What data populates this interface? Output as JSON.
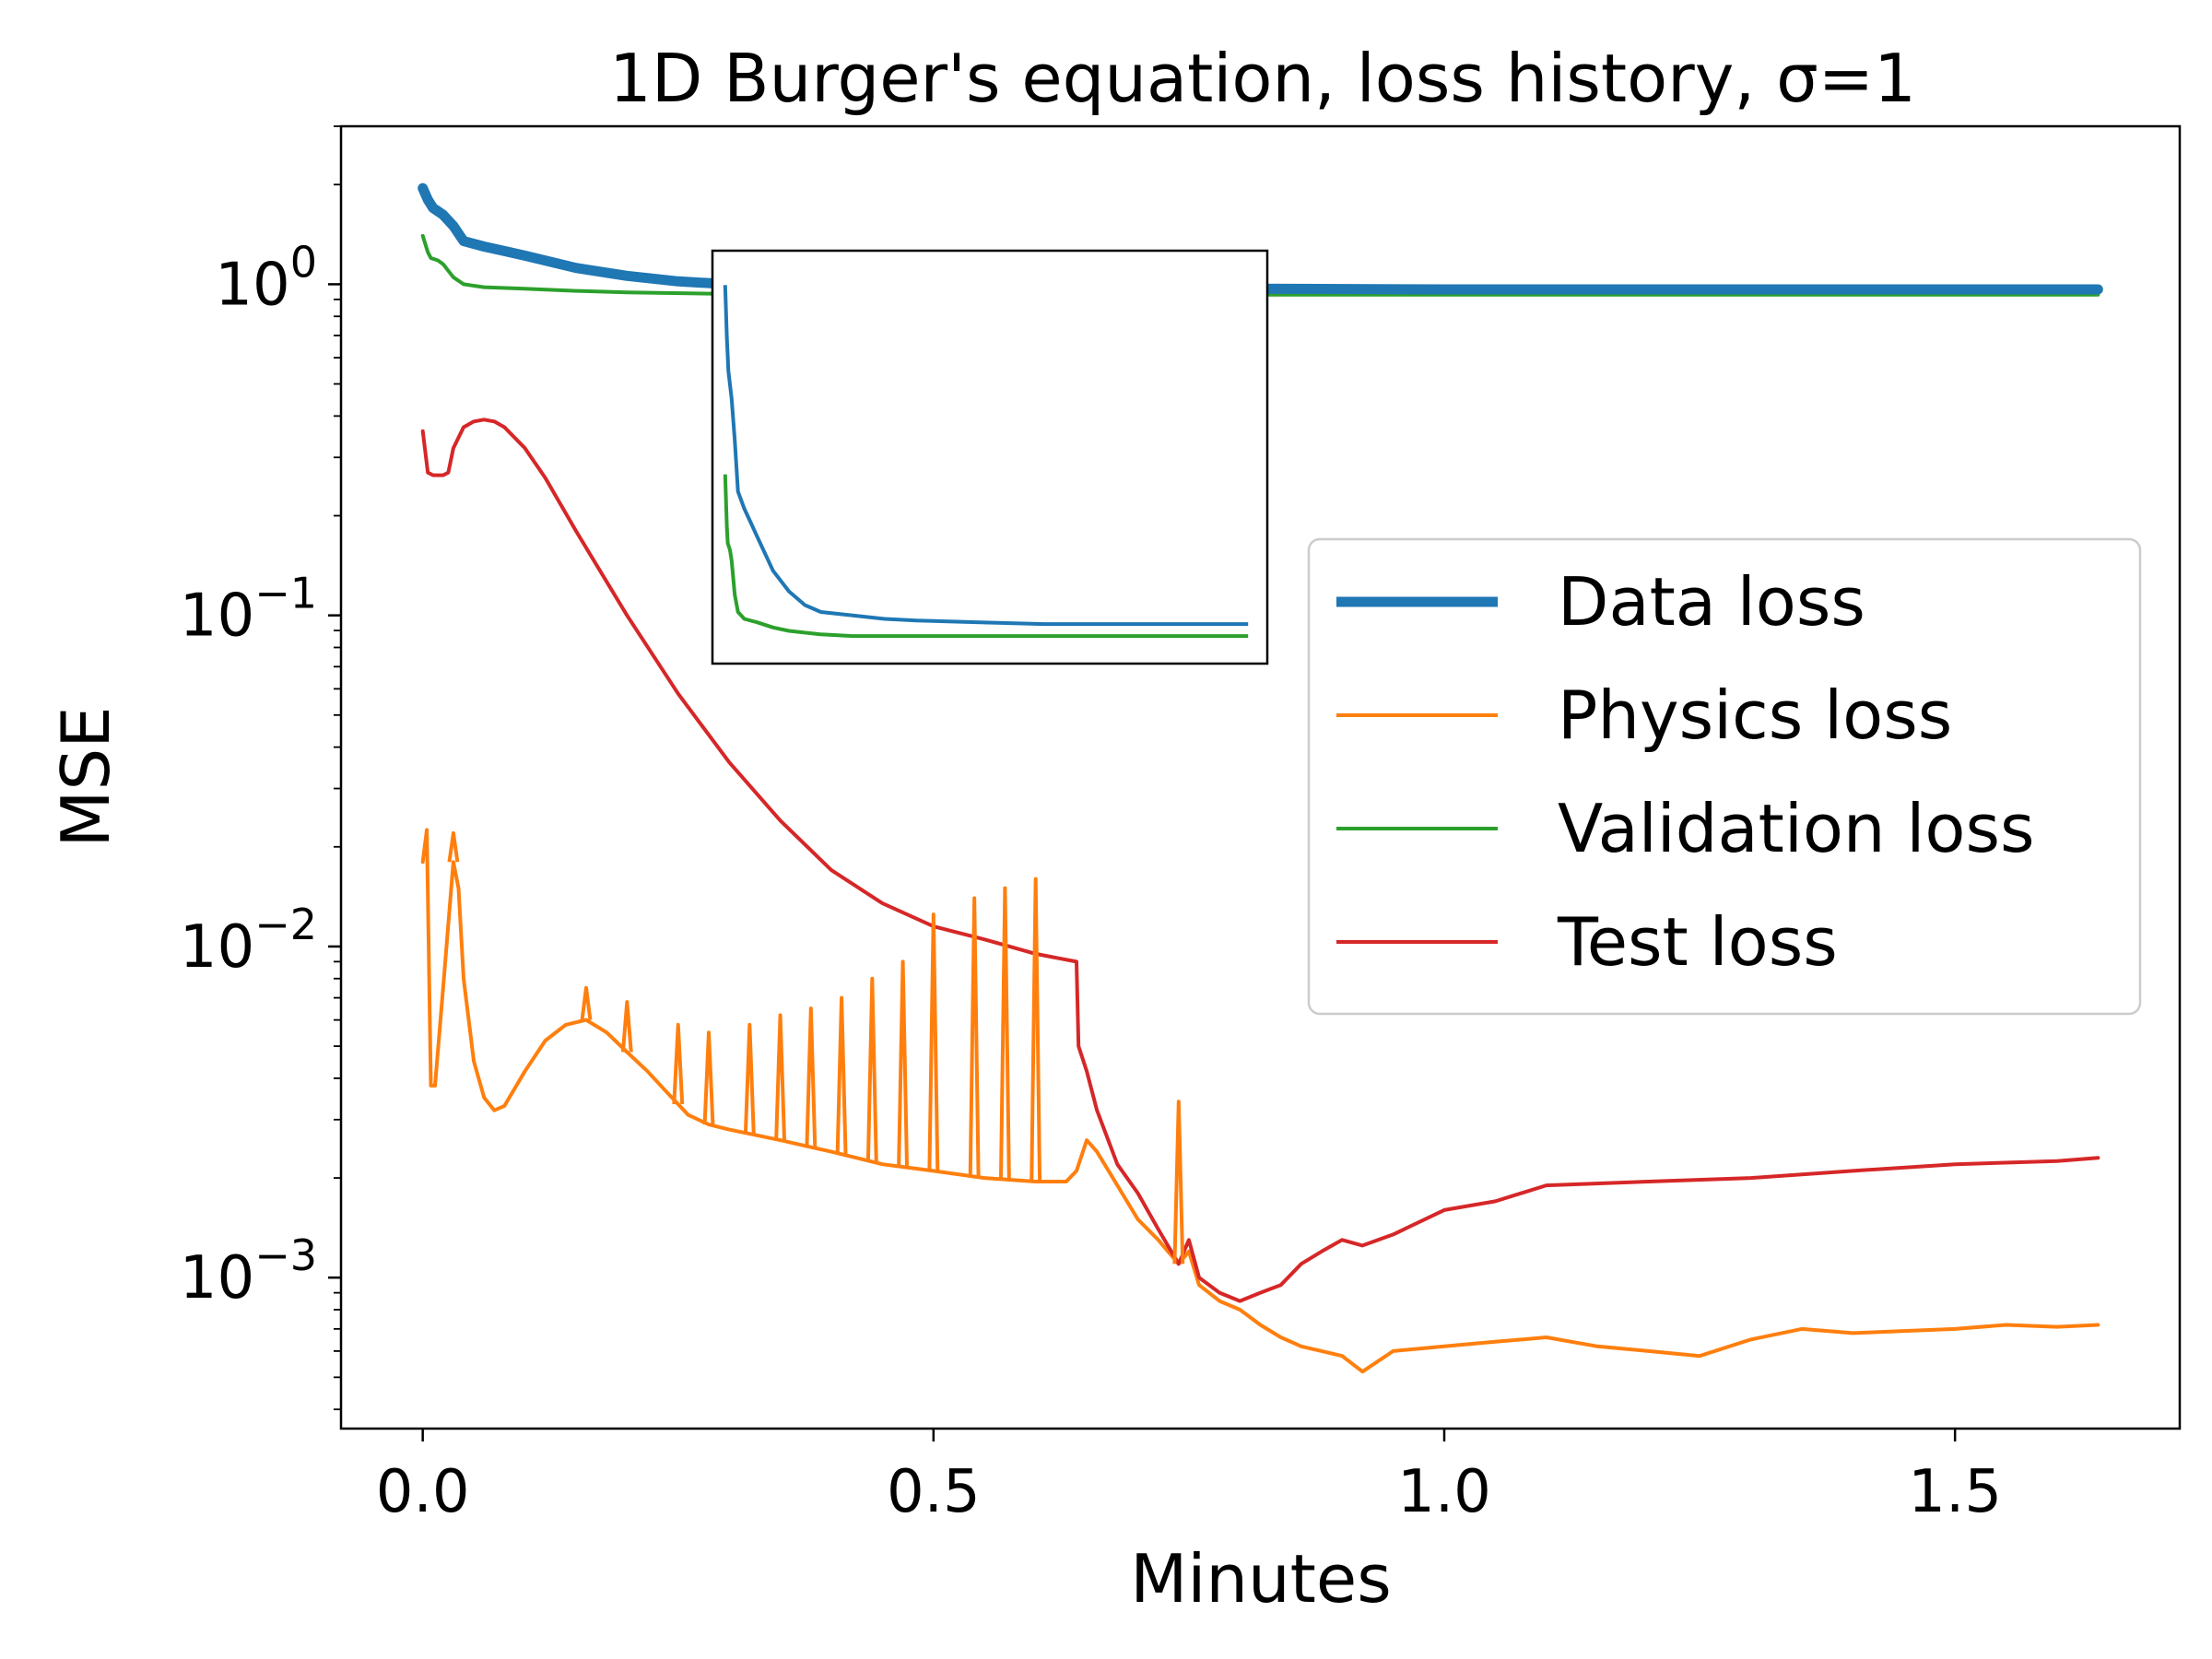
{
  "chart_data": {
    "type": "line",
    "title": "1D Burger's equation, loss history, σ=1",
    "xlabel": "Minutes",
    "ylabel": "MSE",
    "yscale": "log",
    "xlim": [
      -0.08,
      1.72
    ],
    "ylim": [
      0.00035,
      3.0
    ],
    "xticks": [
      0.0,
      0.5,
      1.0,
      1.5
    ],
    "xtick_labels": [
      "0.0",
      "0.5",
      "1.0",
      "1.5"
    ],
    "yticks": [
      {
        "value": 1,
        "base": "10",
        "exp": "0"
      },
      {
        "value": 0.1,
        "base": "10",
        "exp": "−1"
      },
      {
        "value": 0.01,
        "base": "10",
        "exp": "−2"
      },
      {
        "value": 0.001,
        "base": "10",
        "exp": "−3"
      }
    ],
    "legend_position": "center-right",
    "series": [
      {
        "name": "Data loss",
        "color": "#1f77b4",
        "width": "thick",
        "x": [
          0.0,
          0.005,
          0.01,
          0.02,
          0.03,
          0.04,
          0.06,
          0.08,
          0.1,
          0.15,
          0.2,
          0.25,
          0.3,
          0.4,
          0.5,
          0.6,
          0.8,
          1.0,
          1.2,
          1.4,
          1.64
        ],
        "y": [
          1.95,
          1.8,
          1.7,
          1.62,
          1.5,
          1.35,
          1.3,
          1.26,
          1.22,
          1.12,
          1.06,
          1.02,
          1.0,
          0.99,
          0.98,
          0.975,
          0.97,
          0.965,
          0.965,
          0.965,
          0.965
        ]
      },
      {
        "name": "Physics loss",
        "color": "#ff7f0e",
        "width": "normal",
        "x": [
          0.0,
          0.004,
          0.008,
          0.012,
          0.02,
          0.03,
          0.035,
          0.04,
          0.05,
          0.06,
          0.07,
          0.08,
          0.1,
          0.12,
          0.14,
          0.16,
          0.18,
          0.2,
          0.22,
          0.24,
          0.26,
          0.28,
          0.3,
          0.35,
          0.4,
          0.45,
          0.5,
          0.55,
          0.6,
          0.63,
          0.64,
          0.65,
          0.66,
          0.68,
          0.7,
          0.72,
          0.74,
          0.75,
          0.76,
          0.78,
          0.8,
          0.82,
          0.84,
          0.86,
          0.88,
          0.9,
          0.92,
          0.95,
          1.0,
          1.05,
          1.1,
          1.15,
          1.2,
          1.25,
          1.3,
          1.35,
          1.4,
          1.45,
          1.5,
          1.55,
          1.6,
          1.64
        ],
        "y": [
          0.018,
          0.0225,
          0.0038,
          0.0038,
          0.0075,
          0.018,
          0.015,
          0.008,
          0.0045,
          0.0035,
          0.0032,
          0.0033,
          0.0042,
          0.0052,
          0.0058,
          0.006,
          0.0055,
          0.0048,
          0.0042,
          0.0036,
          0.0031,
          0.0029,
          0.0028,
          0.0026,
          0.0024,
          0.0022,
          0.0021,
          0.002,
          0.00195,
          0.00195,
          0.0021,
          0.0026,
          0.0024,
          0.0019,
          0.0015,
          0.0013,
          0.0011,
          0.0012,
          0.00095,
          0.00085,
          0.0008,
          0.00072,
          0.00066,
          0.00062,
          0.0006,
          0.00058,
          0.00052,
          0.0006,
          0.00062,
          0.00064,
          0.00066,
          0.00062,
          0.0006,
          0.00058,
          0.00065,
          0.0007,
          0.00068,
          0.00069,
          0.0007,
          0.00072,
          0.00071,
          0.00072
        ]
      },
      {
        "name": "Validation loss",
        "color": "#2ca02c",
        "width": "normal",
        "x": [
          0.0,
          0.005,
          0.008,
          0.015,
          0.02,
          0.03,
          0.04,
          0.06,
          0.1,
          0.15,
          0.2,
          0.3,
          0.4,
          0.6,
          0.8,
          1.0,
          1.2,
          1.4,
          1.64
        ],
        "y": [
          1.4,
          1.25,
          1.2,
          1.18,
          1.15,
          1.05,
          1.0,
          0.98,
          0.97,
          0.955,
          0.945,
          0.935,
          0.93,
          0.93,
          0.93,
          0.93,
          0.93,
          0.93,
          0.93
        ]
      },
      {
        "name": "Test loss",
        "color": "#d62728",
        "width": "normal",
        "x": [
          0.0,
          0.005,
          0.01,
          0.02,
          0.025,
          0.03,
          0.04,
          0.05,
          0.06,
          0.07,
          0.08,
          0.1,
          0.12,
          0.15,
          0.2,
          0.25,
          0.3,
          0.35,
          0.4,
          0.45,
          0.5,
          0.55,
          0.6,
          0.64,
          0.642,
          0.65,
          0.66,
          0.68,
          0.7,
          0.72,
          0.74,
          0.75,
          0.76,
          0.78,
          0.8,
          0.82,
          0.84,
          0.86,
          0.88,
          0.9,
          0.92,
          0.95,
          1.0,
          1.05,
          1.1,
          1.2,
          1.3,
          1.4,
          1.5,
          1.6,
          1.64
        ],
        "y": [
          0.36,
          0.27,
          0.265,
          0.265,
          0.27,
          0.32,
          0.37,
          0.385,
          0.39,
          0.385,
          0.37,
          0.32,
          0.26,
          0.18,
          0.1,
          0.058,
          0.036,
          0.024,
          0.017,
          0.0135,
          0.0115,
          0.0105,
          0.0095,
          0.009,
          0.005,
          0.0042,
          0.0032,
          0.0022,
          0.0018,
          0.0014,
          0.0011,
          0.0013,
          0.001,
          0.0009,
          0.00085,
          0.0009,
          0.00095,
          0.0011,
          0.0012,
          0.0013,
          0.00125,
          0.00135,
          0.0016,
          0.0017,
          0.0019,
          0.00195,
          0.002,
          0.0021,
          0.0022,
          0.00225,
          0.0023
        ]
      }
    ],
    "inset": {
      "type": "line",
      "yscale": "linear",
      "xlim": [
        -0.04,
        1.7
      ],
      "ylim": [
        0.85,
        2.05
      ],
      "series": [
        {
          "name": "Data loss",
          "color": "#1f77b4",
          "x": [
            0.0,
            0.005,
            0.01,
            0.02,
            0.03,
            0.04,
            0.06,
            0.08,
            0.1,
            0.15,
            0.2,
            0.25,
            0.3,
            0.4,
            0.5,
            0.6,
            0.8,
            1.0,
            1.2,
            1.4,
            1.64
          ],
          "y": [
            1.95,
            1.8,
            1.7,
            1.62,
            1.5,
            1.35,
            1.3,
            1.26,
            1.22,
            1.12,
            1.06,
            1.02,
            1.0,
            0.99,
            0.98,
            0.975,
            0.97,
            0.965,
            0.965,
            0.965,
            0.965
          ]
        },
        {
          "name": "Validation loss",
          "color": "#2ca02c",
          "x": [
            0.0,
            0.005,
            0.008,
            0.015,
            0.02,
            0.03,
            0.04,
            0.06,
            0.1,
            0.15,
            0.2,
            0.3,
            0.4,
            0.6,
            0.8,
            1.0,
            1.2,
            1.4,
            1.64
          ],
          "y": [
            1.4,
            1.25,
            1.2,
            1.18,
            1.15,
            1.05,
            1.0,
            0.98,
            0.97,
            0.955,
            0.945,
            0.935,
            0.93,
            0.93,
            0.93,
            0.93,
            0.93,
            0.93,
            0.93
          ]
        }
      ]
    },
    "spikes": {
      "series": "Physics loss",
      "x": [
        0.03,
        0.16,
        0.2,
        0.25,
        0.28,
        0.32,
        0.35,
        0.38,
        0.41,
        0.44,
        0.47,
        0.5,
        0.54,
        0.57,
        0.6,
        0.74
      ],
      "y": [
        0.022,
        0.0075,
        0.0068,
        0.0058,
        0.0055,
        0.0058,
        0.0062,
        0.0065,
        0.007,
        0.008,
        0.009,
        0.0125,
        0.014,
        0.015,
        0.016,
        0.0034
      ]
    }
  }
}
